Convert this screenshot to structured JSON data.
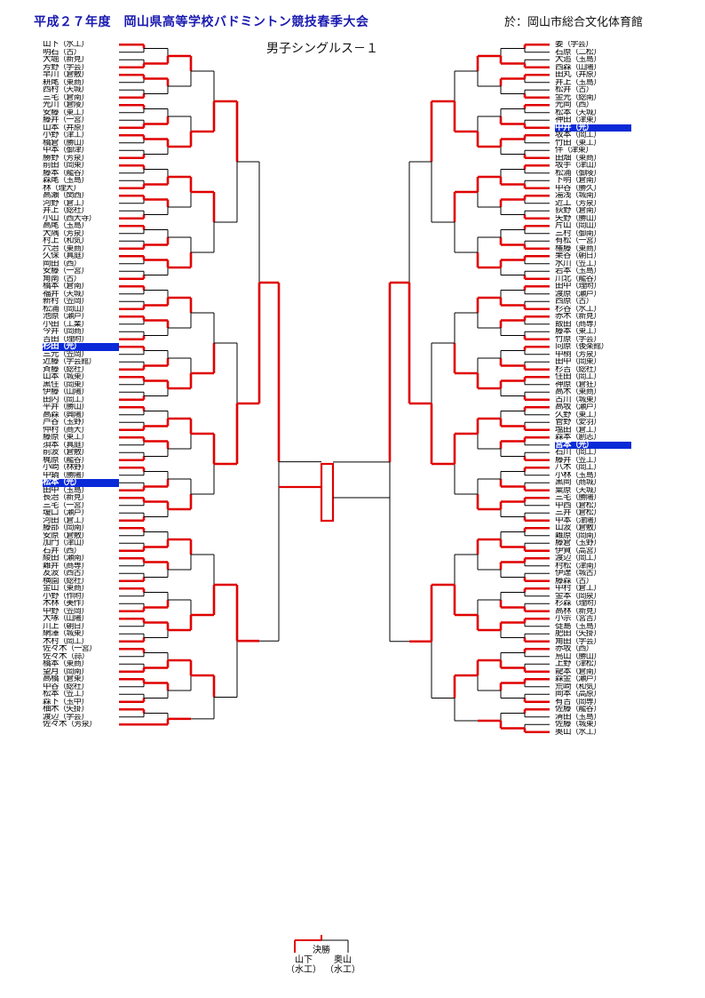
{
  "header": {
    "title": "平成２７年度　岡山県高等学校バドミントン競技春季大会",
    "venue": "於：岡山市総合文化体育館",
    "event": "男子シングルス－１"
  },
  "left_entries": [
    {
      "name": "山下",
      "school": "（水工）"
    },
    {
      "name": "明石",
      "school": "（古）"
    },
    {
      "name": "大堀",
      "school": "（新見）"
    },
    {
      "name": "芳野",
      "school": "（学芸）"
    },
    {
      "name": "早川",
      "school": "（倉敷）"
    },
    {
      "name": "耕尾",
      "school": "（東商）"
    },
    {
      "name": "西村",
      "school": "（天城）"
    },
    {
      "name": "三宅",
      "school": "（倉南）"
    },
    {
      "name": "光川",
      "school": "（倉陵）"
    },
    {
      "name": "安藤",
      "school": "（東工）"
    },
    {
      "name": "藤井",
      "school": "（一宮）"
    },
    {
      "name": "山本",
      "school": "（井原）"
    },
    {
      "name": "小野",
      "school": "（津工）"
    },
    {
      "name": "橋倉",
      "school": "（勝山）"
    },
    {
      "name": "中本",
      "school": "（御津）"
    },
    {
      "name": "勝野",
      "school": "（芳泉）"
    },
    {
      "name": "前田",
      "school": "（岡東）"
    },
    {
      "name": "藤本",
      "school": "（龍谷）"
    },
    {
      "name": "森尾",
      "school": "（玉島）"
    },
    {
      "name": "林",
      "school": "（理大）"
    },
    {
      "name": "高瀬",
      "school": "（関西）"
    },
    {
      "name": "河野",
      "school": "（倉工）"
    },
    {
      "name": "井上",
      "school": "（総社）"
    },
    {
      "name": "小山",
      "school": "（西大寺）"
    },
    {
      "name": "高尾",
      "school": "（玉島）"
    },
    {
      "name": "大隅",
      "school": "（芳泉）"
    },
    {
      "name": "村上",
      "school": "（和気）"
    },
    {
      "name": "六治",
      "school": "（東商）"
    },
    {
      "name": "久保",
      "school": "（真庭）"
    },
    {
      "name": "岡田",
      "school": "（西）"
    },
    {
      "name": "安藤",
      "school": "（一宮）"
    },
    {
      "name": "角南",
      "school": "（古）"
    },
    {
      "name": "橋本",
      "school": "（倉南）"
    },
    {
      "name": "福井",
      "school": "（天城）"
    },
    {
      "name": "新村",
      "school": "（笠岡）"
    },
    {
      "name": "松浦",
      "school": "（岡山）"
    },
    {
      "name": "池原",
      "school": "（瀬戸）"
    },
    {
      "name": "小田",
      "school": "（工業）"
    },
    {
      "name": "今井",
      "school": "（岡商）"
    },
    {
      "name": "吉田",
      "school": "（理附）"
    },
    {
      "name": "杉田",
      "school": "（光）",
      "highlight": true
    },
    {
      "name": "三元",
      "school": "（笠岡）"
    },
    {
      "name": "近藤",
      "school": "（学芸館）"
    },
    {
      "name": "斉藤",
      "school": "（総社）"
    },
    {
      "name": "山本",
      "school": "（城東）"
    },
    {
      "name": "黒住",
      "school": "（岡東）"
    },
    {
      "name": "伊藤",
      "school": "（山陽）"
    },
    {
      "name": "田内",
      "school": "（岡工）"
    },
    {
      "name": "平井",
      "school": "（勝山）"
    },
    {
      "name": "高森",
      "school": "（興陽）"
    },
    {
      "name": "芦谷",
      "school": "（玉野）"
    },
    {
      "name": "仲村",
      "school": "（商大）"
    },
    {
      "name": "藤原",
      "school": "（東工）"
    },
    {
      "name": "須本",
      "school": "（真庭）"
    },
    {
      "name": "前波",
      "school": "（倉敷）"
    },
    {
      "name": "梶原",
      "school": "（龍谷）"
    },
    {
      "name": "小崎",
      "school": "（林野）"
    },
    {
      "name": "中鍋",
      "school": "（勝陽）"
    },
    {
      "name": "松本",
      "school": "（光）",
      "highlight": true
    },
    {
      "name": "田中",
      "school": "（玉島）"
    },
    {
      "name": "長治",
      "school": "（新見）"
    },
    {
      "name": "三宅",
      "school": "（一宮）"
    },
    {
      "name": "瓊口",
      "school": "（瀬戸）"
    },
    {
      "name": "河田",
      "school": "（倉工）"
    },
    {
      "name": "藤部",
      "school": "（岡南）"
    },
    {
      "name": "安原",
      "school": "（倉敷）"
    },
    {
      "name": "加門",
      "school": "（津山）"
    },
    {
      "name": "石井",
      "school": "（西）"
    },
    {
      "name": "綾田",
      "school": "（瀬南）"
    },
    {
      "name": "難井",
      "school": "（商専）"
    },
    {
      "name": "友波",
      "school": "（西古）"
    },
    {
      "name": "横園",
      "school": "（総社）"
    },
    {
      "name": "金山",
      "school": "（東商）"
    },
    {
      "name": "小野",
      "school": "（作附）"
    },
    {
      "name": "木林",
      "school": "（美作）"
    },
    {
      "name": "中野",
      "school": "（笠岡）"
    },
    {
      "name": "大塚",
      "school": "（山陽）"
    },
    {
      "name": "川上",
      "school": "（朝日）"
    },
    {
      "name": "網澤",
      "school": "（城東）"
    },
    {
      "name": "木村",
      "school": "（岡工）"
    },
    {
      "name": "佐々木",
      "school": "（一宮）"
    },
    {
      "name": "佐々木",
      "school": "（蒜）"
    },
    {
      "name": "橋本",
      "school": "（東商）"
    },
    {
      "name": "望月",
      "school": "（岡南）"
    },
    {
      "name": "高橋",
      "school": "（倉東）"
    },
    {
      "name": "中谷",
      "school": "（総社）"
    },
    {
      "name": "松本",
      "school": "（笠工）"
    },
    {
      "name": "森下",
      "school": "（玉中）"
    },
    {
      "name": "柚木",
      "school": "（矢掛）"
    },
    {
      "name": "渡辺",
      "school": "（学芸）"
    },
    {
      "name": "佐々木",
      "school": "（芳泉）"
    }
  ],
  "right_entries": [
    {
      "name": "姜",
      "school": "（学芸）"
    },
    {
      "name": "石原",
      "school": "（二松）"
    },
    {
      "name": "大追",
      "school": "（玉島）"
    },
    {
      "name": "西森",
      "school": "（山陽）"
    },
    {
      "name": "田丸",
      "school": "（井原）"
    },
    {
      "name": "井上",
      "school": "（玉島）"
    },
    {
      "name": "松井",
      "school": "（古）"
    },
    {
      "name": "金光",
      "school": "（総南）"
    },
    {
      "name": "光岡",
      "school": "（西）"
    },
    {
      "name": "松本",
      "school": "（天城）"
    },
    {
      "name": "神田",
      "school": "（津東）"
    },
    {
      "name": "中井",
      "school": "（光）",
      "highlight": true
    },
    {
      "name": "坂本",
      "school": "（岡工）"
    },
    {
      "name": "竹田",
      "school": "（東工）"
    },
    {
      "name": "伴",
      "school": "（津東）"
    },
    {
      "name": "田畑",
      "school": "（東商）"
    },
    {
      "name": "坂手",
      "school": "（津山）"
    },
    {
      "name": "松浦",
      "school": "（御陵）"
    },
    {
      "name": "下明",
      "school": "（倉南）"
    },
    {
      "name": "中谷",
      "school": "（勝久）"
    },
    {
      "name": "湯浅",
      "school": "（城南）"
    },
    {
      "name": "近工",
      "school": "（芳泉）"
    },
    {
      "name": "荻野",
      "school": "（倉南）"
    },
    {
      "name": "矢野",
      "school": "（勝山）"
    },
    {
      "name": "片山",
      "school": "（岡山）"
    },
    {
      "name": "三村",
      "school": "（御南）"
    },
    {
      "name": "有松",
      "school": "（一宮）"
    },
    {
      "name": "権藤",
      "school": "（東商）"
    },
    {
      "name": "栗谷",
      "school": "（朝日）"
    },
    {
      "name": "水川",
      "school": "（笠工）"
    },
    {
      "name": "岩本",
      "school": "（玉島）"
    },
    {
      "name": "川北",
      "school": "（龍谷）"
    },
    {
      "name": "田中",
      "school": "（理附）"
    },
    {
      "name": "渡原",
      "school": "（瀬戸）"
    },
    {
      "name": "西原",
      "school": "（古）"
    },
    {
      "name": "杉谷",
      "school": "（水工）"
    },
    {
      "name": "赤木",
      "school": "（新見）"
    },
    {
      "name": "飯田",
      "school": "（商専）"
    },
    {
      "name": "藤本",
      "school": "（東工）"
    },
    {
      "name": "竹原",
      "school": "（学芸）"
    },
    {
      "name": "向原",
      "school": "（後楽館）"
    },
    {
      "name": "中桐",
      "school": "（芳泉）"
    },
    {
      "name": "田中",
      "school": "（岡東）"
    },
    {
      "name": "杉吉",
      "school": "（総社）"
    },
    {
      "name": "住田",
      "school": "（岡工）"
    },
    {
      "name": "神原",
      "school": "（倉狂）"
    },
    {
      "name": "高木",
      "school": "（東商）"
    },
    {
      "name": "古川",
      "school": "（城東）"
    },
    {
      "name": "高坂",
      "school": "（瀬戸）"
    },
    {
      "name": "久野",
      "school": "（東工）"
    },
    {
      "name": "管野",
      "school": "（愛羽）"
    },
    {
      "name": "塩田",
      "school": "（倉工）"
    },
    {
      "name": "森本",
      "school": "（創志）"
    },
    {
      "name": "宮本",
      "school": "（光）",
      "highlight": true
    },
    {
      "name": "石川",
      "school": "（岡工）"
    },
    {
      "name": "藤井",
      "school": "（笠工）"
    },
    {
      "name": "八木",
      "school": "（岡工）"
    },
    {
      "name": "小林",
      "school": "（玉島）"
    },
    {
      "name": "黒岡",
      "school": "（商城）"
    },
    {
      "name": "粟原",
      "school": "（天城）"
    },
    {
      "name": "三宅",
      "school": "（勝陽）"
    },
    {
      "name": "中西",
      "school": "（倉松）"
    },
    {
      "name": "三井",
      "school": "（倉松）"
    },
    {
      "name": "中本",
      "school": "（津陽）"
    },
    {
      "name": "山波",
      "school": "（倉敷）"
    },
    {
      "name": "難原",
      "school": "（岡南）"
    },
    {
      "name": "藤倉",
      "school": "（玉野）"
    },
    {
      "name": "伊賀",
      "school": "（高宮）"
    },
    {
      "name": "渡辺",
      "school": "（岡工）"
    },
    {
      "name": "村松",
      "school": "（津南）"
    },
    {
      "name": "伊達",
      "school": "（城古）"
    },
    {
      "name": "藤森",
      "school": "（古）"
    },
    {
      "name": "中村",
      "school": "（倉工）"
    },
    {
      "name": "金本",
      "school": "（岡泉）"
    },
    {
      "name": "杉森",
      "school": "（理附）"
    },
    {
      "name": "高林",
      "school": "（新見）"
    },
    {
      "name": "小宗",
      "school": "（宮吉）"
    },
    {
      "name": "徒島",
      "school": "（玉島）"
    },
    {
      "name": "肥田",
      "school": "（矢掛）"
    },
    {
      "name": "角田",
      "school": "（学芸）"
    },
    {
      "name": "赤坂",
      "school": "（西）"
    },
    {
      "name": "鳥山",
      "school": "（勝山）"
    },
    {
      "name": "上野",
      "school": "（津松）"
    },
    {
      "name": "龍本",
      "school": "（倉南）"
    },
    {
      "name": "森金",
      "school": "（瀬戸）"
    },
    {
      "name": "荒崎",
      "school": "（和気）"
    },
    {
      "name": "岡本",
      "school": "（高原）"
    },
    {
      "name": "有吉",
      "school": "（岡専）"
    },
    {
      "name": "佐藤",
      "school": "（龍谷）"
    },
    {
      "name": "清田",
      "school": "（玉島）"
    },
    {
      "name": "佐藤",
      "school": "（城東）"
    },
    {
      "name": "奥山",
      "school": "（水工）"
    }
  ],
  "final": {
    "label": "決勝",
    "left_name": "山下",
    "left_school": "（水工）",
    "right_name": "奥山",
    "right_school": "（水工）"
  },
  "colors": {
    "title": "#1a1ab0",
    "winner_line": "#e00000",
    "bracket_line": "#000000",
    "highlight_bg": "#0a2ad8"
  }
}
